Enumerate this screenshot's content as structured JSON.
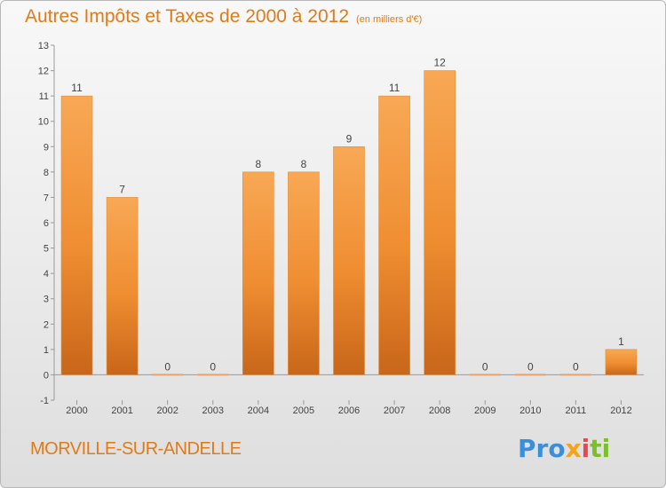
{
  "chart_data": {
    "type": "bar",
    "title": "Autres Impôts et Taxes de 2000 à 2012",
    "subtitle": "(en milliers d'€)",
    "categories": [
      "2000",
      "2001",
      "2002",
      "2003",
      "2004",
      "2005",
      "2006",
      "2007",
      "2008",
      "2009",
      "2010",
      "2011",
      "2012"
    ],
    "values": [
      11,
      7,
      0,
      0,
      8,
      8,
      9,
      11,
      12,
      0,
      0,
      0,
      1
    ],
    "data_labels": [
      "11",
      "7",
      "0",
      "0",
      "8",
      "8",
      "9",
      "11",
      "12",
      "0",
      "0",
      "0",
      "1"
    ],
    "yticks": [
      -1,
      0,
      1,
      2,
      3,
      4,
      5,
      6,
      7,
      8,
      9,
      10,
      11,
      12,
      13
    ],
    "ylim": [
      -1,
      13
    ],
    "grid": false,
    "bar_color": "#f28a1e"
  },
  "commune": "MORVILLE-SUR-ANDELLE",
  "logo": {
    "part1": "Pro",
    "part2": "x",
    "part3": "i",
    "part4": "ti"
  }
}
